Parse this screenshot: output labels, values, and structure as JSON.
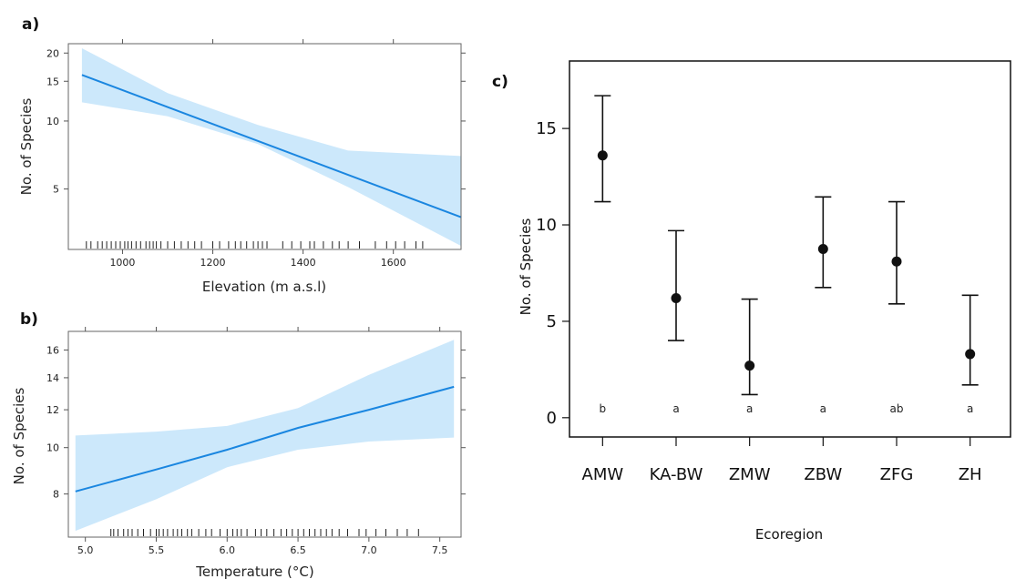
{
  "chart_data": [
    {
      "panel": "a)",
      "type": "line",
      "xlabel": "Elevation (m a.s.l)",
      "ylabel": "No. of Species",
      "y_scale": "log",
      "xlim": [
        880,
        1750
      ],
      "ylim": [
        2.7,
        22
      ],
      "xticks": [
        1000,
        1200,
        1400,
        1600
      ],
      "xtick_labels": [
        "1000",
        "1200",
        "1400",
        "1600"
      ],
      "yticks": [
        5,
        10,
        15,
        20
      ],
      "ytick_labels": [
        "5",
        "10",
        "15",
        "20"
      ],
      "series": [
        {
          "x": [
            910,
            1750
          ],
          "y": [
            16.0,
            3.75
          ]
        }
      ],
      "confidence_band": {
        "x": [
          910,
          1100,
          1300,
          1500,
          1750
        ],
        "lower": [
          12.1,
          10.5,
          7.9,
          5.1,
          2.8
        ],
        "upper": [
          21.0,
          13.3,
          9.6,
          7.4,
          7.0
        ]
      },
      "rug": [
        920,
        930,
        945,
        955,
        965,
        975,
        985,
        995,
        1005,
        1012,
        1020,
        1030,
        1040,
        1052,
        1060,
        1068,
        1075,
        1085,
        1100,
        1115,
        1130,
        1145,
        1160,
        1175,
        1200,
        1215,
        1235,
        1250,
        1262,
        1275,
        1290,
        1300,
        1310,
        1320,
        1355,
        1375,
        1395,
        1415,
        1425,
        1445,
        1465,
        1480,
        1500,
        1525,
        1560,
        1585,
        1605,
        1625,
        1650,
        1665
      ],
      "colors": {
        "line": "#1a86e0",
        "band": "#cce8fb",
        "rug": "#222222"
      }
    },
    {
      "panel": "b)",
      "type": "line",
      "xlabel": "Temperature (°C)",
      "ylabel": "No. of Species",
      "y_scale": "log",
      "xlim": [
        4.88,
        7.65
      ],
      "ylim": [
        6.5,
        17.5
      ],
      "xticks": [
        5.0,
        5.5,
        6.0,
        6.5,
        7.0,
        7.5
      ],
      "xtick_labels": [
        "5.0",
        "5.5",
        "6.0",
        "6.5",
        "7.0",
        "7.5"
      ],
      "yticks": [
        8,
        10,
        12,
        14,
        16
      ],
      "ytick_labels": [
        "8",
        "10",
        "12",
        "14",
        "16"
      ],
      "series": [
        {
          "x": [
            4.93,
            5.5,
            6.0,
            6.5,
            7.0,
            7.6
          ],
          "y": [
            8.1,
            9.0,
            9.9,
            11.0,
            12.0,
            13.4
          ]
        }
      ],
      "confidence_band": {
        "x": [
          4.93,
          5.5,
          6.0,
          6.5,
          7.0,
          7.6
        ],
        "lower": [
          6.7,
          7.8,
          9.1,
          9.9,
          10.3,
          10.5
        ],
        "upper": [
          10.6,
          10.8,
          11.1,
          12.1,
          14.2,
          16.8
        ]
      },
      "rug": [
        5.18,
        5.2,
        5.23,
        5.27,
        5.3,
        5.33,
        5.37,
        5.41,
        5.46,
        5.5,
        5.52,
        5.55,
        5.58,
        5.62,
        5.65,
        5.68,
        5.72,
        5.75,
        5.8,
        5.85,
        5.89,
        5.95,
        6.0,
        6.04,
        6.07,
        6.1,
        6.14,
        6.2,
        6.24,
        6.28,
        6.33,
        6.38,
        6.42,
        6.46,
        6.5,
        6.54,
        6.58,
        6.62,
        6.66,
        6.7,
        6.74,
        6.79,
        6.85,
        6.93,
        6.98,
        7.05,
        7.12,
        7.2,
        7.27,
        7.35
      ],
      "colors": {
        "line": "#1a86e0",
        "band": "#cce8fb",
        "rug": "#222222"
      }
    },
    {
      "panel": "c)",
      "type": "scatter",
      "xlabel": "Ecoregion",
      "ylabel": "No. of Species",
      "ylim": [
        -1,
        18.5
      ],
      "yticks": [
        0,
        5,
        10,
        15
      ],
      "ytick_labels": [
        "0",
        "5",
        "10",
        "15"
      ],
      "categories": [
        "AMW",
        "KA-BW",
        "ZMW",
        "ZBW",
        "ZFG",
        "ZH"
      ],
      "values": [
        13.6,
        6.2,
        2.7,
        8.75,
        8.1,
        3.3
      ],
      "err_low": [
        11.2,
        4.0,
        1.2,
        6.75,
        5.9,
        1.7
      ],
      "err_high": [
        16.7,
        9.7,
        6.15,
        11.45,
        11.2,
        6.35
      ],
      "significance_letters": [
        "b",
        "a",
        "a",
        "a",
        "ab",
        "a"
      ],
      "colors": {
        "point": "#111111",
        "frame": "#111111"
      }
    }
  ]
}
